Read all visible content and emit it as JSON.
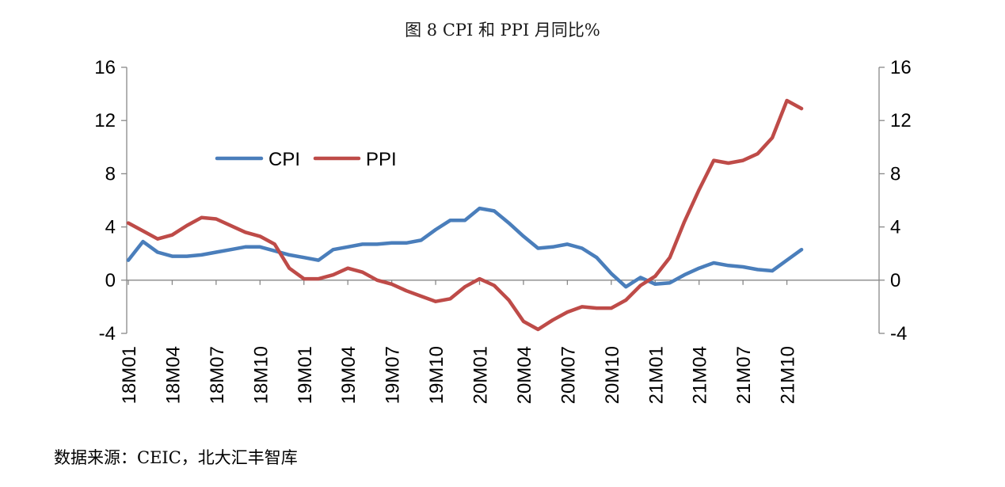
{
  "chart_data": {
    "type": "line",
    "title": "图 8 CPI 和 PPI 月同比%",
    "x": [
      "18M01",
      "18M02",
      "18M03",
      "18M04",
      "18M05",
      "18M06",
      "18M07",
      "18M08",
      "18M09",
      "18M10",
      "18M11",
      "18M12",
      "19M01",
      "19M02",
      "19M03",
      "19M04",
      "19M05",
      "19M06",
      "19M07",
      "19M08",
      "19M09",
      "19M10",
      "19M11",
      "19M12",
      "20M01",
      "20M02",
      "20M03",
      "20M04",
      "20M05",
      "20M06",
      "20M07",
      "20M08",
      "20M09",
      "20M10",
      "20M11",
      "20M12",
      "21M01",
      "21M02",
      "21M03",
      "21M04",
      "21M05",
      "21M06",
      "21M07",
      "21M08",
      "21M09",
      "21M10",
      "21M11"
    ],
    "x_tick_labels": [
      "18M01",
      "18M04",
      "18M07",
      "18M10",
      "19M01",
      "19M04",
      "19M07",
      "19M10",
      "20M01",
      "20M04",
      "20M07",
      "20M10",
      "21M01",
      "21M04",
      "21M07",
      "21M10"
    ],
    "series": [
      {
        "name": "CPI",
        "color": "#4a7ebb",
        "values": [
          1.5,
          2.9,
          2.1,
          1.8,
          1.8,
          1.9,
          2.1,
          2.3,
          2.5,
          2.5,
          2.2,
          1.9,
          1.7,
          1.5,
          2.3,
          2.5,
          2.7,
          2.7,
          2.8,
          2.8,
          3.0,
          3.8,
          4.5,
          4.5,
          5.4,
          5.2,
          4.3,
          3.3,
          2.4,
          2.5,
          2.7,
          2.4,
          1.7,
          0.5,
          -0.5,
          0.2,
          -0.3,
          -0.2,
          0.4,
          0.9,
          1.3,
          1.1,
          1.0,
          0.8,
          0.7,
          1.5,
          2.3
        ]
      },
      {
        "name": "PPI",
        "color": "#be4b48",
        "values": [
          4.3,
          3.7,
          3.1,
          3.4,
          4.1,
          4.7,
          4.6,
          4.1,
          3.6,
          3.3,
          2.7,
          0.9,
          0.1,
          0.1,
          0.4,
          0.9,
          0.6,
          0.0,
          -0.3,
          -0.8,
          -1.2,
          -1.6,
          -1.4,
          -0.5,
          0.1,
          -0.4,
          -1.5,
          -3.1,
          -3.7,
          -3.0,
          -2.4,
          -2.0,
          -2.1,
          -2.1,
          -1.5,
          -0.4,
          0.3,
          1.7,
          4.4,
          6.8,
          9.0,
          8.8,
          9.0,
          9.5,
          10.7,
          13.5,
          12.9
        ]
      }
    ],
    "ylim": [
      -4,
      16
    ],
    "y_ticks": [
      "-4",
      "0",
      "4",
      "8",
      "12",
      "16"
    ],
    "secondary_ylim": [
      -4,
      16
    ],
    "legend": "top-left inside plot area",
    "grid": false
  },
  "source_note": "数据来源：CEIC，北大汇丰智库"
}
